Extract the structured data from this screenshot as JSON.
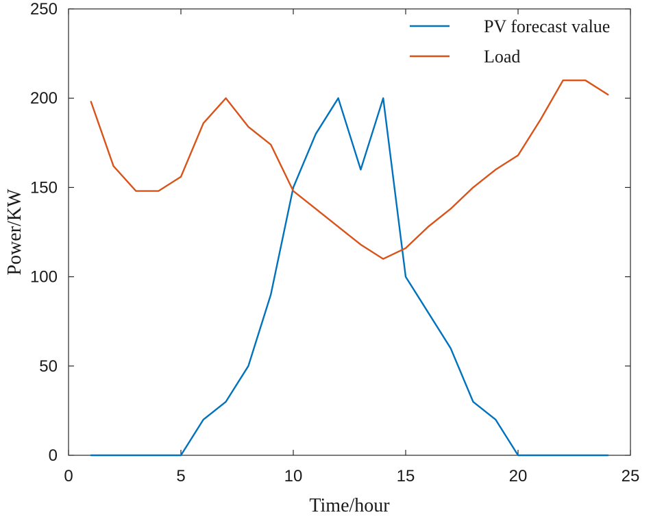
{
  "chart_data": {
    "type": "line",
    "title": "",
    "xlabel": "Time/hour",
    "ylabel": "Power/KW",
    "xlim": [
      0,
      25
    ],
    "ylim": [
      0,
      250
    ],
    "xticks": [
      0,
      5,
      10,
      15,
      20,
      25
    ],
    "yticks": [
      0,
      50,
      100,
      150,
      200,
      250
    ],
    "grid": false,
    "legend_position": "top-right",
    "series": [
      {
        "name": "PV forecast value",
        "color": "#0072BD",
        "x": [
          1,
          2,
          3,
          4,
          5,
          6,
          7,
          8,
          9,
          10,
          11,
          12,
          13,
          14,
          15,
          16,
          17,
          18,
          19,
          20,
          21,
          22,
          23,
          24
        ],
        "values": [
          0,
          0,
          0,
          0,
          0,
          20,
          30,
          50,
          90,
          150,
          180,
          200,
          160,
          200,
          100,
          80,
          60,
          30,
          20,
          0,
          0,
          0,
          0,
          0
        ]
      },
      {
        "name": "Load",
        "color": "#D95319",
        "x": [
          1,
          2,
          3,
          4,
          5,
          6,
          7,
          8,
          9,
          10,
          11,
          12,
          13,
          14,
          15,
          16,
          17,
          18,
          19,
          20,
          21,
          22,
          23,
          24
        ],
        "values": [
          198,
          162,
          148,
          148,
          156,
          186,
          200,
          184,
          174,
          148,
          138,
          128,
          118,
          110,
          116,
          128,
          138,
          150,
          160,
          168,
          188,
          210,
          210,
          202
        ]
      }
    ]
  }
}
